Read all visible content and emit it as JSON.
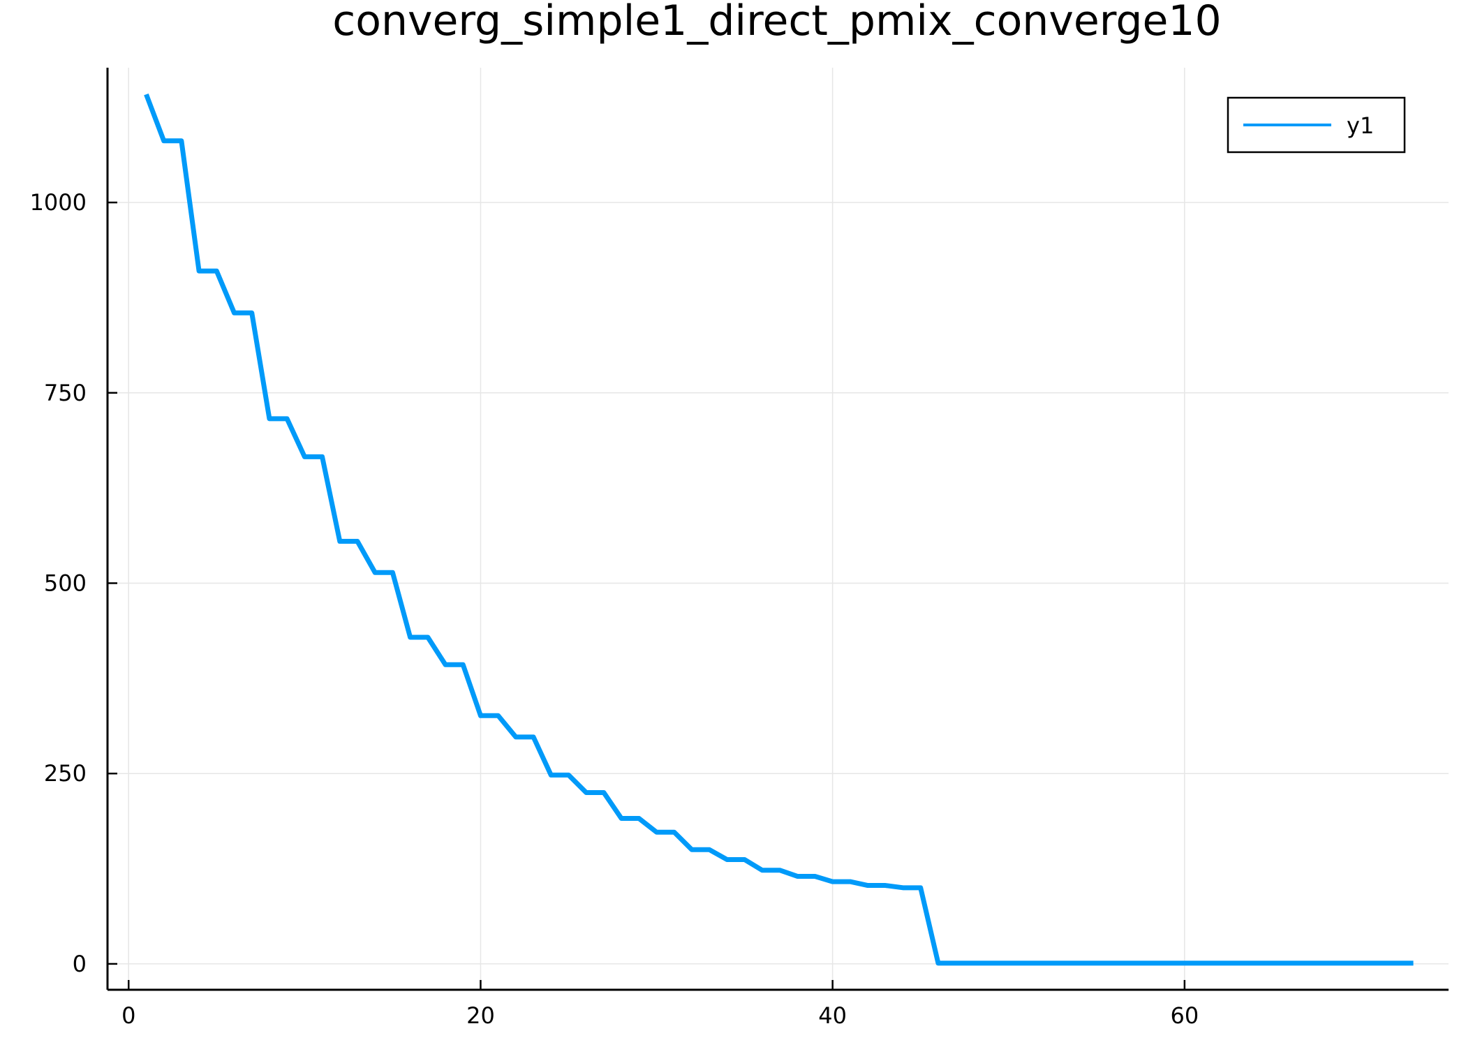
{
  "chart_data": {
    "type": "line",
    "title": "converg_simple1_direct_pmix_converge10",
    "xlabel": "",
    "ylabel": "",
    "xlim": [
      -1.2,
      75
    ],
    "ylim": [
      -34,
      1177
    ],
    "xticks": [
      0,
      20,
      40,
      60
    ],
    "xtick_labels": [
      "0",
      "20",
      "40",
      "60"
    ],
    "yticks": [
      0,
      250,
      500,
      750,
      1000
    ],
    "ytick_labels": [
      "0",
      "250",
      "500",
      "750",
      "1000"
    ],
    "grid": true,
    "legend_position": "top-right",
    "series": [
      {
        "name": "y1",
        "color": "#009af9",
        "x": [
          1,
          2,
          3,
          4,
          5,
          6,
          7,
          8,
          9,
          10,
          11,
          12,
          13,
          14,
          15,
          16,
          17,
          18,
          19,
          20,
          21,
          22,
          23,
          24,
          25,
          26,
          27,
          28,
          29,
          30,
          31,
          32,
          33,
          34,
          35,
          36,
          37,
          38,
          39,
          40,
          41,
          42,
          43,
          44,
          45,
          46,
          47,
          48,
          49,
          50,
          51,
          52,
          53,
          54,
          55,
          56,
          57,
          58,
          59,
          60,
          61,
          62,
          63,
          64,
          65,
          66,
          67,
          68,
          69,
          70,
          71,
          72,
          73
        ],
        "values": [
          1142,
          1081,
          1081,
          910,
          910,
          855,
          855,
          716,
          716,
          666,
          666,
          555,
          555,
          514,
          514,
          429,
          429,
          393,
          393,
          326,
          326,
          298,
          298,
          248,
          248,
          225,
          225,
          191,
          191,
          173,
          173,
          150,
          150,
          137,
          137,
          123,
          123,
          115,
          115,
          108,
          108,
          103,
          103,
          100,
          100,
          1,
          1,
          1,
          1,
          1,
          1,
          1,
          1,
          1,
          1,
          1,
          1,
          1,
          1,
          1,
          1,
          1,
          1,
          1,
          1,
          1,
          1,
          1,
          1,
          1,
          1,
          1,
          1
        ]
      }
    ]
  }
}
